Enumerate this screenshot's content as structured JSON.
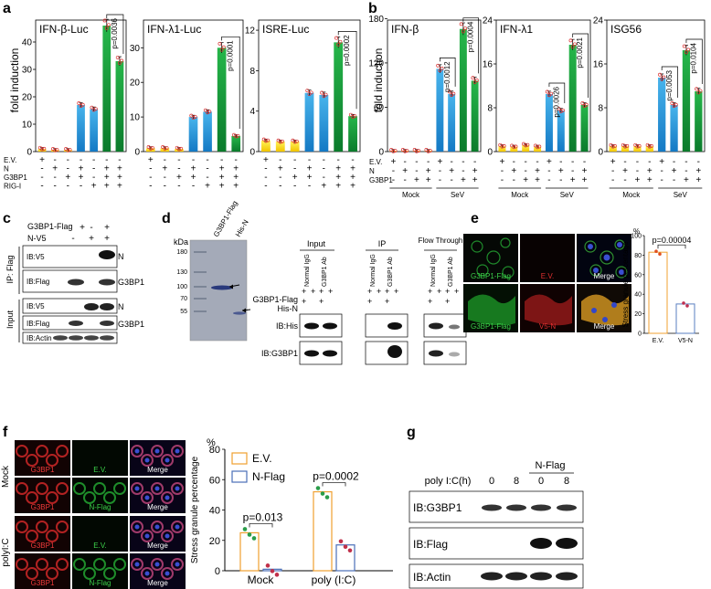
{
  "panel_labels": [
    "a",
    "b",
    "c",
    "d",
    "e",
    "f",
    "g"
  ],
  "panel_a": {
    "ylabel": "fold induction",
    "row_labels": [
      "E.V.",
      "N",
      "G3BP1",
      "RIG-I"
    ],
    "signs": [
      [
        "+",
        "-",
        "-",
        "-",
        "-",
        "-",
        "-"
      ],
      [
        "-",
        "+",
        "-",
        "+",
        "-",
        "+",
        "+"
      ],
      [
        "-",
        "-",
        "+",
        "+",
        "-",
        "+",
        "+"
      ],
      [
        "-",
        "-",
        "-",
        "-",
        "+",
        "+",
        "+"
      ]
    ]
  },
  "panel_b": {
    "ylabel": "fold induction",
    "row_labels": [
      "E.V.",
      "N",
      "G3BP1"
    ],
    "signs": [
      [
        "+",
        "-",
        "-",
        "-",
        "+",
        "-",
        "-",
        "-"
      ],
      [
        "-",
        "+",
        "-",
        "+",
        "-",
        "+",
        "-",
        "+"
      ],
      [
        "-",
        "-",
        "+",
        "+",
        "-",
        "-",
        "+",
        "+"
      ]
    ],
    "group_labels": [
      "Mock",
      "SeV"
    ]
  },
  "chart_data": [
    {
      "type": "bar",
      "panel": "a",
      "title": "IFN-β-Luc",
      "ylim": [
        0,
        48
      ],
      "yticks": [
        "0",
        "10",
        "20",
        "30",
        "40"
      ],
      "values": [
        1,
        0.6,
        0.6,
        17,
        15.5,
        46,
        33
      ],
      "colors": [
        "yellow",
        "yellow",
        "yellow",
        "blue",
        "blue",
        "green",
        "green"
      ],
      "pvalues": [
        {
          "text": "p=0.0036",
          "between": [
            5,
            6
          ]
        }
      ]
    },
    {
      "type": "bar",
      "panel": "a",
      "title": "IFN-λ1-Luc",
      "ylim": [
        0,
        38
      ],
      "yticks": [
        "0",
        "10",
        "20",
        "30"
      ],
      "values": [
        1,
        1,
        0.8,
        10,
        11.5,
        30,
        4.5
      ],
      "colors": [
        "yellow",
        "yellow",
        "yellow",
        "blue",
        "blue",
        "green",
        "green"
      ],
      "pvalues": [
        {
          "text": "p=0.0001",
          "between": [
            5,
            6
          ]
        }
      ]
    },
    {
      "type": "bar",
      "panel": "a",
      "title": "ISRE-Luc",
      "ylim": [
        0,
        13
      ],
      "yticks": [
        "0",
        "4",
        "8",
        "12"
      ],
      "values": [
        1.1,
        1,
        1,
        5.8,
        5.6,
        10.8,
        3.5
      ],
      "colors": [
        "yellow",
        "yellow",
        "yellow",
        "blue",
        "blue",
        "green",
        "green"
      ],
      "pvalues": [
        {
          "text": "p=0.0002",
          "between": [
            5,
            6
          ]
        }
      ]
    },
    {
      "type": "bar",
      "panel": "b",
      "title": "IFN-β",
      "ylim": [
        0,
        178
      ],
      "yticks": [
        "0",
        "60",
        "120",
        "180"
      ],
      "values": [
        1,
        1,
        1,
        1,
        112,
        78,
        166,
        96
      ],
      "colors": [
        "yellow",
        "yellow",
        "yellow",
        "yellow",
        "blue",
        "blue",
        "green",
        "green"
      ],
      "pvalues": [
        {
          "text": "p=0.0012",
          "between": [
            4,
            5
          ]
        },
        {
          "text": "p=0.0004",
          "between": [
            6,
            7
          ]
        }
      ]
    },
    {
      "type": "bar",
      "panel": "b",
      "title": "IFN-λ1",
      "ylim": [
        0,
        24
      ],
      "yticks": [
        "0",
        "8",
        "16",
        "24"
      ],
      "values": [
        1,
        0.9,
        1.2,
        0.9,
        10.5,
        7.5,
        19.5,
        8.5
      ],
      "colors": [
        "yellow",
        "yellow",
        "yellow",
        "yellow",
        "blue",
        "blue",
        "green",
        "green"
      ],
      "pvalues": [
        {
          "text": "p=0.0026",
          "between": [
            4,
            5
          ]
        },
        {
          "text": "p=0.0021",
          "between": [
            6,
            7
          ]
        }
      ]
    },
    {
      "type": "bar",
      "panel": "b",
      "title": "ISG56",
      "ylim": [
        0,
        24
      ],
      "yticks": [
        "0",
        "8",
        "16",
        "24"
      ],
      "values": [
        1,
        1,
        1,
        1,
        13.5,
        8.5,
        18.5,
        11
      ],
      "colors": [
        "yellow",
        "yellow",
        "yellow",
        "yellow",
        "blue",
        "blue",
        "green",
        "green"
      ],
      "pvalues": [
        {
          "text": "p=0.0053",
          "between": [
            4,
            5
          ]
        },
        {
          "text": "p=0.0104",
          "between": [
            6,
            7
          ]
        }
      ]
    },
    {
      "type": "bar",
      "panel": "e",
      "ylabel": "Stress granule percentage",
      "ylim": [
        0,
        100
      ],
      "yticks": [
        "0",
        "20",
        "40",
        "60",
        "80",
        "100"
      ],
      "yunit": "%",
      "categories": [
        "E.V.",
        "V5-N"
      ],
      "values": [
        83,
        30
      ],
      "pvalues": [
        {
          "text": "p=0.00004",
          "between": [
            0,
            1
          ]
        }
      ]
    },
    {
      "type": "bar",
      "panel": "f",
      "ylabel": "Stress granule percentage",
      "ylim": [
        0,
        80
      ],
      "yticks": [
        "0",
        "20",
        "40",
        "60",
        "80"
      ],
      "yunit": "%",
      "categories": [
        "Mock",
        "poly (I:C)"
      ],
      "series": [
        {
          "name": "E.V.",
          "values": [
            25,
            52
          ]
        },
        {
          "name": "N-Flag",
          "values": [
            1,
            17
          ]
        }
      ],
      "pvalues": [
        {
          "text": "p=0.013",
          "group": 0
        },
        {
          "text": "p=0.0002",
          "group": 1
        }
      ]
    }
  ],
  "panel_c": {
    "top_labels": [
      "G3BP1-Flag",
      "N-V5"
    ],
    "top_signs": [
      [
        "+",
        "-",
        "+"
      ],
      [
        "-",
        "+",
        "+"
      ]
    ],
    "ip_label": "IP: Flag",
    "input_label": "Input",
    "blot_labels": [
      "IB:V5",
      "IB:Flag",
      "IB:V5",
      "IB:Flag",
      "IB:Actin"
    ],
    "arrow_labels": [
      "N",
      "G3BP1",
      "N",
      "G3BP1"
    ]
  },
  "panel_d": {
    "kda": "kDa",
    "markers": [
      "180",
      "130",
      "100",
      "70",
      "55"
    ],
    "lane_labels": [
      "G3BP1-Flag",
      "His-N"
    ],
    "section_labels": [
      "Input",
      "IP",
      "Flow Through"
    ],
    "ab_labels": [
      "Normal IgG",
      "G3BP1 Ab"
    ],
    "row_labels": [
      "G3BP1-Flag",
      "His-N"
    ],
    "blot_labels": [
      "IB:His",
      "IB:G3BP1"
    ]
  },
  "panel_e": {
    "cell_labels": [
      "G3BP1-Flag",
      "E.V.",
      "Merge",
      "G3BP1-Flag",
      "V5-N",
      "Merge"
    ]
  },
  "panel_f": {
    "row_labels": [
      "Mock",
      "polyI:C"
    ],
    "cell_labels": [
      "G3BP1",
      "E.V.",
      "Merge",
      "G3BP1",
      "N-Flag",
      "Merge",
      "G3BP1",
      "E.V.",
      "Merge",
      "G3BP1",
      "N-Flag",
      "Merge"
    ]
  },
  "panel_g": {
    "header": "N-Flag",
    "row_label": "poly I:C(h)",
    "times": [
      "0",
      "8",
      "0",
      "8"
    ],
    "blot_labels": [
      "IB:G3BP1",
      "IB:Flag",
      "IB:Actin"
    ]
  }
}
